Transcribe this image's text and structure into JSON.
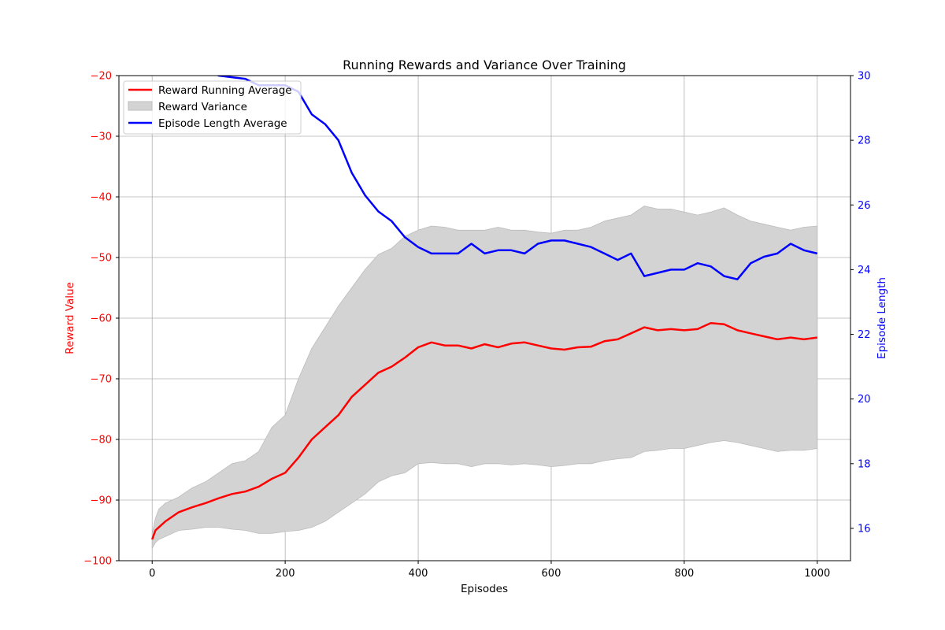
{
  "chart_data": {
    "type": "line",
    "title": "Running Rewards and Variance Over Training",
    "xlabel": "Episodes",
    "ylabel": "Reward Value",
    "y2label": "Episode Length",
    "xlim": [
      -50,
      1050
    ],
    "ylim": [
      -100,
      -20
    ],
    "y2lim": [
      15,
      30
    ],
    "xticks": [
      0,
      200,
      400,
      600,
      800,
      1000
    ],
    "yticks": [
      -100,
      -90,
      -80,
      -70,
      -60,
      -50,
      -40,
      -30,
      -20
    ],
    "y2ticks": [
      16,
      18,
      20,
      22,
      24,
      26,
      28,
      30
    ],
    "grid": true,
    "legend_position": "top-left",
    "legend": [
      "Reward Running Average",
      "Reward Variance",
      "Episode Length Average"
    ],
    "colors": {
      "reward": "#ff0000",
      "variance": "#d3d3d3",
      "variance_edge": "#bcbcbc",
      "length": "#0000ff",
      "left_axis": "#ff0000",
      "right_axis": "#0000ff",
      "grid": "#b0b0b0"
    },
    "series": [
      {
        "name": "Reward Running Average",
        "axis": "left",
        "x": [
          0,
          5,
          10,
          20,
          40,
          60,
          80,
          100,
          120,
          140,
          160,
          180,
          200,
          220,
          240,
          260,
          280,
          300,
          320,
          340,
          360,
          380,
          400,
          420,
          440,
          460,
          480,
          500,
          520,
          540,
          560,
          580,
          600,
          620,
          640,
          660,
          680,
          700,
          720,
          740,
          760,
          780,
          800,
          820,
          840,
          860,
          880,
          900,
          920,
          940,
          960,
          980,
          1000
        ],
        "values": [
          -96.5,
          -95.0,
          -94.5,
          -93.5,
          -92.0,
          -91.2,
          -90.5,
          -89.7,
          -89.0,
          -88.6,
          -87.8,
          -86.5,
          -85.5,
          -83.0,
          -80.0,
          -78.0,
          -76.0,
          -73.0,
          -71.0,
          -69.0,
          -68.0,
          -66.5,
          -64.8,
          -64.0,
          -64.5,
          -64.5,
          -65.0,
          -64.3,
          -64.8,
          -64.2,
          -64.0,
          -64.5,
          -65.0,
          -65.2,
          -64.8,
          -64.7,
          -63.8,
          -63.5,
          -62.5,
          -61.5,
          -62.0,
          -61.8,
          -62.0,
          -61.8,
          -60.8,
          -61.0,
          -62.0,
          -62.5,
          -63.0,
          -63.5,
          -63.2,
          -63.5,
          -63.2
        ]
      },
      {
        "name": "Reward Variance",
        "axis": "left",
        "x": [
          0,
          5,
          10,
          20,
          40,
          60,
          80,
          100,
          120,
          140,
          160,
          180,
          200,
          220,
          240,
          260,
          280,
          300,
          320,
          340,
          360,
          380,
          400,
          420,
          440,
          460,
          480,
          500,
          520,
          540,
          560,
          580,
          600,
          620,
          640,
          660,
          680,
          700,
          720,
          740,
          760,
          780,
          800,
          820,
          840,
          860,
          880,
          900,
          920,
          940,
          960,
          980,
          1000
        ],
        "upper": [
          -95.5,
          -93.0,
          -91.5,
          -90.5,
          -89.5,
          -88.0,
          -87.0,
          -85.5,
          -84.0,
          -83.5,
          -82.0,
          -78.0,
          -76.0,
          -70.0,
          -65.0,
          -61.5,
          -58.0,
          -55.0,
          -52.0,
          -49.5,
          -48.5,
          -46.5,
          -45.5,
          -44.8,
          -45.0,
          -45.5,
          -45.5,
          -45.5,
          -45.0,
          -45.5,
          -45.5,
          -45.8,
          -46.0,
          -45.5,
          -45.5,
          -45.0,
          -44.0,
          -43.5,
          -43.0,
          -41.5,
          -42.0,
          -42.0,
          -42.5,
          -43.0,
          -42.5,
          -41.8,
          -43.0,
          -44.0,
          -44.5,
          -45.0,
          -45.5,
          -45.0,
          -44.8
        ],
        "lower": [
          -98.0,
          -97.0,
          -96.5,
          -96.0,
          -95.0,
          -94.8,
          -94.5,
          -94.5,
          -94.8,
          -95.0,
          -95.5,
          -95.5,
          -95.2,
          -95.0,
          -94.5,
          -93.5,
          -92.0,
          -90.5,
          -89.0,
          -87.0,
          -86.0,
          -85.5,
          -84.0,
          -83.8,
          -84.0,
          -84.0,
          -84.5,
          -84.0,
          -84.0,
          -84.2,
          -84.0,
          -84.2,
          -84.5,
          -84.3,
          -84.0,
          -84.0,
          -83.5,
          -83.2,
          -83.0,
          -82.0,
          -81.8,
          -81.5,
          -81.5,
          -81.0,
          -80.5,
          -80.2,
          -80.5,
          -81.0,
          -81.5,
          -82.0,
          -81.8,
          -81.8,
          -81.5
        ]
      },
      {
        "name": "Episode Length Average",
        "axis": "right",
        "x": [
          0,
          20,
          40,
          60,
          80,
          100,
          120,
          140,
          160,
          180,
          200,
          220,
          240,
          260,
          280,
          300,
          320,
          340,
          360,
          380,
          400,
          420,
          440,
          460,
          480,
          500,
          520,
          540,
          560,
          580,
          600,
          620,
          640,
          660,
          680,
          700,
          720,
          740,
          760,
          780,
          800,
          820,
          840,
          860,
          880,
          900,
          920,
          940,
          960,
          980,
          1000
        ],
        "values": [
          30.8,
          30.5,
          30.5,
          30.3,
          30.2,
          30.0,
          29.95,
          29.9,
          29.7,
          29.7,
          29.7,
          29.5,
          28.8,
          28.5,
          28.0,
          27.0,
          26.3,
          25.8,
          25.5,
          25.0,
          24.7,
          24.5,
          24.5,
          24.5,
          24.8,
          24.5,
          24.6,
          24.6,
          24.5,
          24.8,
          24.9,
          24.9,
          24.8,
          24.7,
          24.5,
          24.3,
          24.5,
          23.8,
          23.9,
          24.0,
          24.0,
          24.2,
          24.1,
          23.8,
          23.7,
          24.2,
          24.4,
          24.5,
          24.8,
          24.6,
          24.5
        ]
      }
    ]
  }
}
